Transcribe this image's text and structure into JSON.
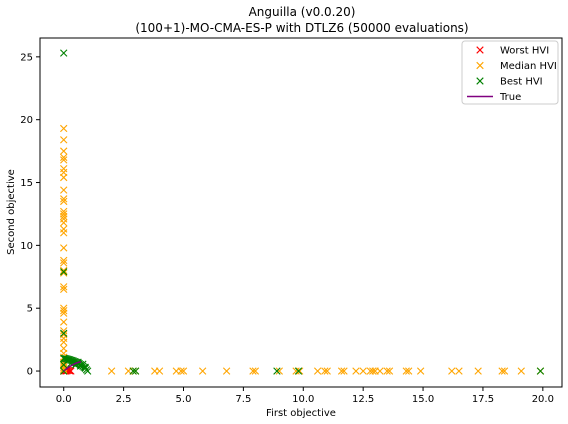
{
  "chart_data": {
    "type": "scatter",
    "title": "Anguilla (v0.0.20)",
    "subtitle": "(100+1)-MO-CMA-ES-P with DTLZ6 (50000 evaluations)",
    "xlabel": "First objective",
    "ylabel": "Second objective",
    "xlim": [
      -0.99,
      20.8
    ],
    "ylim": [
      -1.27,
      26.5
    ],
    "x_ticks": [
      0.0,
      2.5,
      5.0,
      7.5,
      10.0,
      12.5,
      15.0,
      17.5,
      20.0
    ],
    "x_tick_labels": [
      "0.0",
      "2.5",
      "5.0",
      "7.5",
      "10.0",
      "12.5",
      "15.0",
      "17.5",
      "20.0"
    ],
    "y_ticks": [
      0,
      5,
      10,
      15,
      20,
      25
    ],
    "y_tick_labels": [
      "0",
      "5",
      "10",
      "15",
      "20",
      "25"
    ],
    "grid": false,
    "legend_position": "top-right",
    "series": [
      {
        "name": "Worst HVI",
        "marker": "x",
        "color": "#ff0000",
        "x": [
          0.0,
          0.02,
          0.05,
          0.08,
          0.1,
          0.12,
          0.15,
          0.2,
          0.25,
          0.3
        ],
        "y": [
          0.0,
          0.05,
          0.02,
          0.08,
          0.0,
          0.1,
          0.03,
          0.06,
          0.02,
          0.0
        ]
      },
      {
        "name": "Median HVI",
        "marker": "x",
        "color": "#ffa500",
        "x": [
          0,
          0,
          0,
          0,
          0,
          0,
          0,
          0,
          0,
          0,
          0,
          0,
          0,
          0,
          0,
          0,
          0,
          0,
          0,
          0,
          0,
          0,
          0,
          0,
          0,
          0,
          0,
          0,
          0,
          0,
          0,
          0,
          0,
          0,
          0,
          0,
          0,
          0,
          0,
          0,
          0,
          0,
          2.0,
          2.7,
          2.9,
          3.0,
          3.8,
          4.0,
          4.7,
          4.9,
          5.0,
          5.8,
          6.8,
          7.9,
          8.0,
          9.0,
          9.7,
          9.85,
          10.6,
          10.9,
          11.0,
          11.6,
          11.7,
          12.2,
          12.5,
          12.8,
          12.9,
          13.0,
          13.2,
          13.5,
          13.6,
          14.3,
          14.4,
          14.9,
          16.2,
          16.5,
          17.3,
          18.3,
          18.4,
          19.1,
          19.9
        ],
        "y": [
          19.3,
          18.4,
          17.5,
          17.0,
          16.8,
          16.1,
          15.8,
          15.4,
          14.4,
          13.7,
          13.5,
          12.7,
          12.5,
          12.3,
          12.1,
          11.8,
          11.3,
          11.0,
          9.8,
          8.8,
          8.6,
          8.0,
          7.8,
          6.7,
          6.5,
          5.0,
          4.8,
          4.6,
          3.9,
          3.2,
          2.9,
          2.6,
          2.3,
          1.8,
          1.4,
          1.1,
          0.7,
          0.55,
          0.4,
          0.25,
          0.12,
          0.0,
          0,
          0,
          0,
          0,
          0,
          0,
          0,
          0,
          0,
          0,
          0,
          0,
          0,
          0,
          0,
          0,
          0,
          0,
          0,
          0,
          0,
          0,
          0,
          0,
          0,
          0,
          0,
          0,
          0,
          0,
          0,
          0,
          0,
          0,
          0,
          0,
          0,
          0,
          0
        ]
      },
      {
        "name": "Best HVI",
        "marker": "x",
        "color": "#008000",
        "x": [
          0.0,
          0.0,
          0.0,
          2.9,
          3.0,
          8.9,
          9.8,
          19.9,
          0.0,
          0.0,
          0.0,
          0.05,
          0.1,
          0.15,
          0.2,
          0.25,
          0.3,
          0.35,
          0.4,
          0.45,
          0.5,
          0.55,
          0.6,
          0.65,
          0.7,
          0.75,
          0.8,
          0.85,
          0.9,
          0.95,
          1.0,
          0.3,
          0.5,
          0.7,
          0.9,
          0.6,
          0.8
        ],
        "y": [
          25.3,
          7.9,
          3.0,
          0.0,
          0.0,
          0.0,
          0.0,
          0.0,
          0.0,
          0.5,
          1.0,
          1.0,
          0.98,
          0.95,
          0.92,
          0.9,
          0.86,
          0.84,
          0.8,
          0.75,
          0.72,
          0.68,
          0.62,
          0.58,
          0.52,
          0.45,
          0.38,
          0.3,
          0.22,
          0.1,
          0.0,
          0.6,
          0.5,
          0.4,
          0.3,
          0.7,
          0.55
        ]
      },
      {
        "name": "True",
        "marker": "line",
        "color": "#800080",
        "x": [
          0.0,
          0.08,
          0.16,
          0.24,
          0.32,
          0.4,
          0.48,
          0.56,
          0.64,
          0.72
        ],
        "y": [
          0.0,
          0.12,
          0.24,
          0.34,
          0.44,
          0.52,
          0.6,
          0.66,
          0.71,
          0.74
        ]
      }
    ]
  }
}
